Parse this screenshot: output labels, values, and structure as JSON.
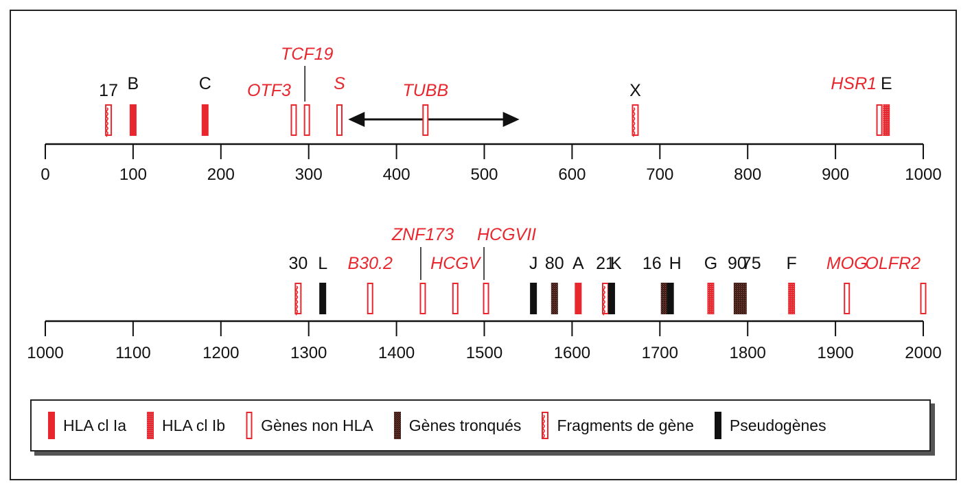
{
  "colors": {
    "red": "#e8262d",
    "black": "#111111",
    "axis": "#111111"
  },
  "tracks": [
    {
      "id": "track1",
      "domain": [
        0,
        1000
      ],
      "ticks": [
        0,
        100,
        200,
        300,
        400,
        500,
        600,
        700,
        800,
        900,
        1000
      ],
      "tick_labels": [
        "0",
        "100",
        "200",
        "300",
        "400",
        "500",
        "600",
        "700",
        "800",
        "900",
        "1000"
      ],
      "genes": [
        {
          "pos": 72,
          "type": "fragment",
          "label": "17",
          "label_color": "black",
          "italic": false,
          "label_tier": "low"
        },
        {
          "pos": 100,
          "type": "class_ia",
          "label": "B",
          "label_color": "black",
          "italic": false,
          "label_tier": "mid"
        },
        {
          "pos": 182,
          "type": "class_ia",
          "label": "C",
          "label_color": "black",
          "italic": false,
          "label_tier": "mid"
        },
        {
          "pos": 283,
          "type": "non_hla",
          "label": "OTF3",
          "label_color": "red",
          "italic": true,
          "label_tier": "low",
          "label_anchor": "end"
        },
        {
          "pos": 298,
          "type": "non_hla",
          "label": "TCF19",
          "label_color": "red",
          "italic": true,
          "label_tier": "top",
          "leader": true
        },
        {
          "pos": 335,
          "type": "non_hla",
          "label": "S",
          "label_color": "red",
          "italic": true,
          "label_tier": "mid"
        },
        {
          "pos": 433,
          "type": "non_hla",
          "label": "TUBB",
          "label_color": "red",
          "italic": true,
          "label_tier": "low"
        },
        {
          "pos": 672,
          "type": "fragment",
          "label": "X",
          "label_color": "black",
          "italic": false,
          "label_tier": "low"
        },
        {
          "pos": 950,
          "type": "non_hla",
          "label": "HSR1",
          "label_color": "red",
          "italic": true,
          "label_tier": "mid",
          "label_anchor": "end"
        },
        {
          "pos": 958,
          "type": "class_ib",
          "label": "E",
          "label_color": "black",
          "italic": false,
          "label_tier": "mid"
        }
      ],
      "arrow": {
        "from": 345,
        "to": 540
      }
    },
    {
      "id": "track2",
      "domain": [
        1000,
        2000
      ],
      "ticks": [
        1000,
        1100,
        1200,
        1300,
        1400,
        1500,
        1600,
        1700,
        1800,
        1900,
        2000
      ],
      "tick_labels": [
        "1000",
        "1100",
        "1200",
        "1300",
        "1400",
        "1500",
        "1600",
        "1700",
        "1800",
        "1900",
        "2000"
      ],
      "genes": [
        {
          "pos": 1288,
          "type": "fragment",
          "label": "30",
          "label_color": "black",
          "italic": false,
          "label_tier": "low"
        },
        {
          "pos": 1316,
          "type": "pseudo",
          "label": "L",
          "label_color": "black",
          "italic": false,
          "label_tier": "low"
        },
        {
          "pos": 1370,
          "type": "non_hla",
          "label": "B30.2",
          "label_color": "red",
          "italic": true,
          "label_tier": "low"
        },
        {
          "pos": 1430,
          "type": "non_hla",
          "label": "ZNF173",
          "label_color": "red",
          "italic": true,
          "label_tier": "top",
          "leader": true
        },
        {
          "pos": 1467,
          "type": "non_hla",
          "label": "HCGV",
          "label_color": "red",
          "italic": true,
          "label_tier": "low"
        },
        {
          "pos": 1502,
          "type": "non_hla",
          "label": "HCGVII",
          "label_color": "red",
          "italic": true,
          "label_tier": "top",
          "leader": true,
          "label_anchor": "start"
        },
        {
          "pos": 1556,
          "type": "pseudo",
          "label": "J",
          "label_color": "black",
          "italic": false,
          "label_tier": "low"
        },
        {
          "pos": 1580,
          "type": "truncated",
          "label": "80",
          "label_color": "black",
          "italic": false,
          "label_tier": "low"
        },
        {
          "pos": 1607,
          "type": "class_ia",
          "label": "A",
          "label_color": "black",
          "italic": false,
          "label_tier": "low"
        },
        {
          "pos": 1638,
          "type": "fragment",
          "label": "21",
          "label_color": "black",
          "italic": false,
          "label_tier": "low"
        },
        {
          "pos": 1645,
          "type": "pseudo",
          "label": "K",
          "label_color": "black",
          "italic": false,
          "label_tier": "low",
          "label_anchor": "start"
        },
        {
          "pos": 1705,
          "type": "truncated",
          "label": "16",
          "label_color": "black",
          "italic": false,
          "label_tier": "low",
          "label_anchor": "end"
        },
        {
          "pos": 1712,
          "type": "pseudo",
          "label": "H",
          "label_color": "black",
          "italic": false,
          "label_tier": "low",
          "label_anchor": "start"
        },
        {
          "pos": 1758,
          "type": "class_ib",
          "label": "G",
          "label_color": "black",
          "italic": false,
          "label_tier": "low"
        },
        {
          "pos": 1788,
          "type": "truncated",
          "label": "90",
          "label_color": "black",
          "italic": false,
          "label_tier": "low"
        },
        {
          "pos": 1795,
          "type": "truncated",
          "label": "75",
          "label_color": "black",
          "italic": false,
          "label_tier": "low",
          "label_anchor": "start"
        },
        {
          "pos": 1850,
          "type": "class_ib",
          "label": "F",
          "label_color": "black",
          "italic": false,
          "label_tier": "low"
        },
        {
          "pos": 1913,
          "type": "non_hla",
          "label": "MOG",
          "label_color": "red",
          "italic": true,
          "label_tier": "low"
        },
        {
          "pos": 2000,
          "type": "non_hla",
          "label": "OLFR2",
          "label_color": "red",
          "italic": true,
          "label_tier": "low",
          "label_anchor": "end"
        }
      ]
    }
  ],
  "legend": [
    {
      "type": "class_ia",
      "label": "HLA cl Ia"
    },
    {
      "type": "class_ib",
      "label": "HLA cl Ib"
    },
    {
      "type": "non_hla",
      "label": "Gènes non HLA"
    },
    {
      "type": "truncated",
      "label": "Gènes tronqués"
    },
    {
      "type": "fragment",
      "label": "Fragments de gène"
    },
    {
      "type": "pseudo",
      "label": "Pseudogènes"
    }
  ]
}
